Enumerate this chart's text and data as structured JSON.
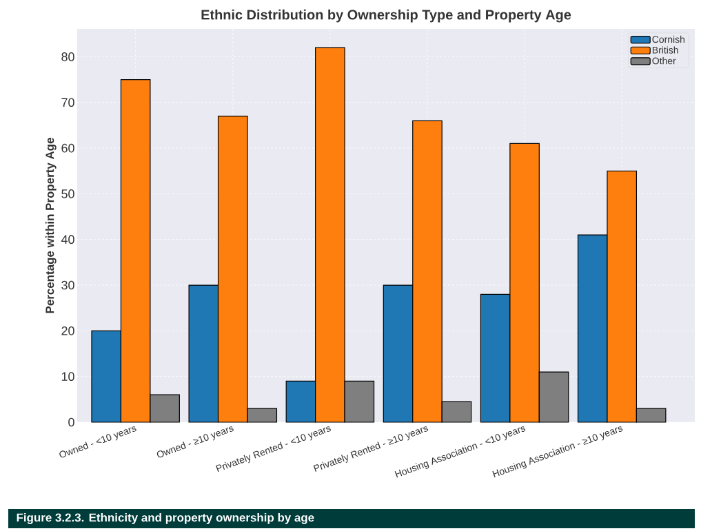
{
  "chart_data": {
    "type": "bar",
    "title": "Ethnic Distribution by Ownership Type and Property Age",
    "ylabel": "Percentage within Property Age",
    "categories": [
      "Owned - <10 years",
      "Owned - ≥10 years",
      "Privately Rented - <10 years",
      "Privately Rented - ≥10 years",
      "Housing Association - <10 years",
      "Housing Association - ≥10 years"
    ],
    "series": [
      {
        "name": "Cornish",
        "color": "#1f77b4",
        "values": [
          20,
          30,
          9,
          30,
          28,
          41
        ]
      },
      {
        "name": "British",
        "color": "#ff7f0e",
        "values": [
          75,
          67,
          82,
          66,
          61,
          55
        ]
      },
      {
        "name": "Other",
        "color": "#7f7f7f",
        "values": [
          6,
          3,
          9,
          4.5,
          11,
          3
        ]
      }
    ],
    "ylim": [
      0,
      86.1
    ],
    "yticks": [
      0,
      10,
      20,
      30,
      40,
      50,
      60,
      70,
      80
    ],
    "grid": true,
    "legend": "top right",
    "annotations": [
      "Figure 3.2.3. Ethnicity and property ownership by age"
    ]
  }
}
